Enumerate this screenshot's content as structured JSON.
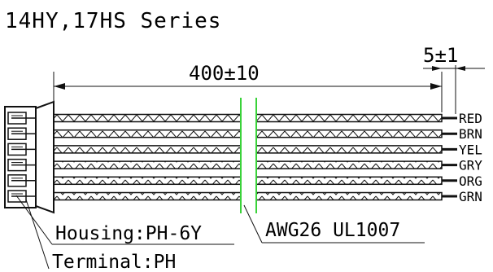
{
  "diagram": {
    "title": "14HY,17HS Series",
    "cable_length": "400±10",
    "strip_length": "5±1",
    "housing_label": "Housing:PH-6Y",
    "terminal_label": "Terminal:PH",
    "wire_spec": "AWG26 UL1007",
    "wires": [
      {
        "label": "RED"
      },
      {
        "label": "BRN"
      },
      {
        "label": "YEL"
      },
      {
        "label": "GRY"
      },
      {
        "label": "ORG"
      },
      {
        "label": "GRN"
      }
    ]
  }
}
